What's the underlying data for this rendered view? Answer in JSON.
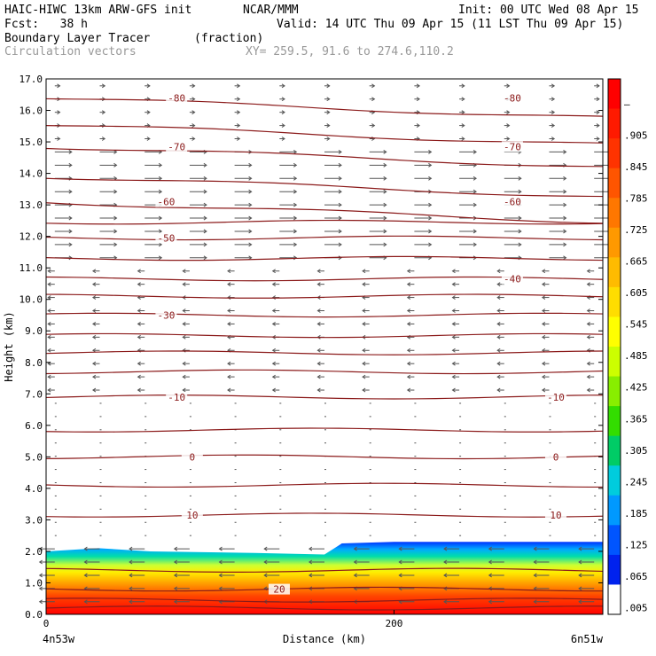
{
  "header": {
    "model": "HAIC-HIWC 13km ARW-GFS init",
    "org": "NCAR/MMM",
    "init": "Init: 00 UTC Wed 08 Apr 15",
    "fcst": "Fcst:   38 h",
    "valid": "Valid: 14 UTC Thu 09 Apr 15 (11 LST Thu 09 Apr 15)",
    "field": "Boundary Layer Tracer",
    "units": "(fraction)",
    "vectors": "Circulation vectors",
    "xy": "XY= 259.5, 91.6 to 274.6,110.2"
  },
  "chart_data": {
    "type": "contour-cross-section",
    "ylabel": "Height (km)",
    "xlabel": "Distance (km)",
    "ylim": [
      0,
      17
    ],
    "xlim": [
      0,
      320
    ],
    "yticks": [
      "0.0",
      "1.0",
      "2.0",
      "3.0",
      "4.0",
      "5.0",
      "6.0",
      "7.0",
      "8.0",
      "9.0",
      "10.0",
      "11.0",
      "12.0",
      "13.0",
      "14.0",
      "15.0",
      "16.0",
      "17.0"
    ],
    "xticks": [
      {
        "value": 0,
        "label": "0"
      },
      {
        "value": 200,
        "label": "200"
      }
    ],
    "endpoints": {
      "left": "4n53w",
      "right": "6n51w"
    },
    "colorbar": {
      "labels": [
        "–",
        ".905",
        ".845",
        ".785",
        ".725",
        ".665",
        ".605",
        ".545",
        ".485",
        ".425",
        ".365",
        ".305",
        ".245",
        ".185",
        ".125",
        ".065",
        ".005"
      ],
      "colors": [
        "#ff0000",
        "#ff1a00",
        "#ff3300",
        "#ff5500",
        "#ff7700",
        "#ff9900",
        "#ffbb00",
        "#ffdd00",
        "#ffff00",
        "#ccff00",
        "#88ee00",
        "#33dd00",
        "#00cc66",
        "#00ccdd",
        "#0099ff",
        "#0055ff",
        "#0022ee",
        "#ffffff"
      ]
    },
    "tracer_top": [
      {
        "x": 0,
        "z": 2.0
      },
      {
        "x": 30,
        "z": 2.1
      },
      {
        "x": 60,
        "z": 2.0
      },
      {
        "x": 120,
        "z": 1.95
      },
      {
        "x": 160,
        "z": 1.9
      },
      {
        "x": 170,
        "z": 2.25
      },
      {
        "x": 200,
        "z": 2.3
      },
      {
        "x": 260,
        "z": 2.3
      },
      {
        "x": 320,
        "z": 2.3
      }
    ],
    "temperature_contours": [
      {
        "level": "20",
        "z": 0.8,
        "label_x": 134
      },
      {
        "level": "10",
        "z": 3.15,
        "label_x": 84,
        "label_x2": 293
      },
      {
        "level": "0",
        "z": 5.0,
        "label_x": 84,
        "label_x2": 293
      },
      {
        "level": "-10",
        "z": 6.9,
        "label_x": 75,
        "label_x2": 293
      },
      {
        "level": "-30",
        "z": 9.5,
        "label_x": 69
      },
      {
        "level": "-40",
        "z": 10.65,
        "label_x2": 268
      },
      {
        "level": "-50",
        "z": 11.95,
        "label_x": 69
      },
      {
        "level": "-60",
        "z": 13.1,
        "label_x": 69,
        "label_x2": 268
      },
      {
        "level": "-70",
        "z": 14.85,
        "label_x": 75,
        "label_x2": 268
      },
      {
        "level": "-80",
        "z": 16.4,
        "label_x": 75,
        "label_x2": 268
      }
    ],
    "extra_contour_heights": [
      0.2,
      0.45,
      1.4,
      4.1,
      5.85,
      7.7,
      8.3,
      8.85,
      10.1,
      11.3,
      12.45,
      13.9,
      15.55
    ]
  }
}
